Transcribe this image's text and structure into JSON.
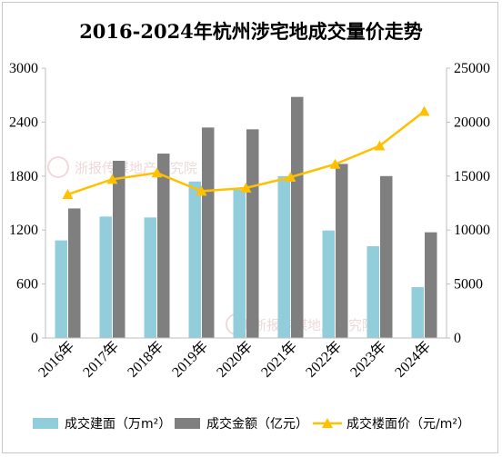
{
  "chart_data": {
    "type": "bar",
    "title": "2016-2024年杭州涉宅地成交量价走势",
    "categories": [
      "2016年",
      "2017年",
      "2018年",
      "2019年",
      "2020年",
      "2021年",
      "2022年",
      "2023年",
      "2024年"
    ],
    "y_left": {
      "range": [
        0,
        3000
      ],
      "ticks": [
        "0",
        "600",
        "1200",
        "1800",
        "2400",
        "3000"
      ]
    },
    "y_right": {
      "range": [
        0,
        25000
      ],
      "ticks": [
        "0",
        "5000",
        "10000",
        "15000",
        "20000",
        "25000"
      ]
    },
    "series": [
      {
        "name": "成交建面（万m²）",
        "type": "bar",
        "axis": "left",
        "color": "#92cddc",
        "values": [
          1085,
          1350,
          1340,
          1740,
          1650,
          1800,
          1195,
          1020,
          565
        ]
      },
      {
        "name": "成交金额（亿元）",
        "type": "bar",
        "axis": "left",
        "color": "#7f7f7f",
        "values": [
          1440,
          1970,
          2050,
          2340,
          2320,
          2680,
          1935,
          1800,
          1175
        ]
      },
      {
        "name": "成交楼面价（元/m²）",
        "type": "line",
        "axis": "right",
        "color": "#ffc000",
        "values": [
          13300,
          14700,
          15300,
          13600,
          13900,
          14900,
          16100,
          17800,
          21000
        ]
      }
    ],
    "grid": false,
    "legend": "bottom"
  },
  "watermark": "浙报传媒地产研究院"
}
